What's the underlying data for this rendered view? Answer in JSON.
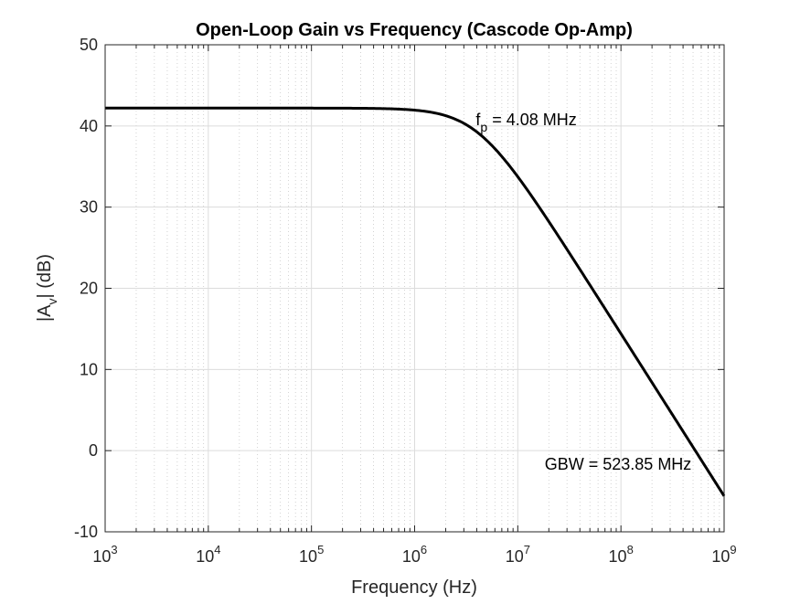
{
  "chart_data": {
    "type": "line",
    "title": "Open-Loop Gain vs Frequency (Cascode Op-Amp)",
    "xlabel": "Frequency (Hz)",
    "ylabel": {
      "prefix": "|A",
      "subscript": "v",
      "suffix": "| (dB)"
    },
    "xscale": "log",
    "xlim": [
      1000,
      1000000000
    ],
    "ylim": [
      -10,
      50
    ],
    "grid": true,
    "minor_grid": true,
    "x_ticks": [
      {
        "value": 1000,
        "base": "10",
        "exp": "3"
      },
      {
        "value": 10000,
        "base": "10",
        "exp": "4"
      },
      {
        "value": 100000,
        "base": "10",
        "exp": "5"
      },
      {
        "value": 1000000,
        "base": "10",
        "exp": "6"
      },
      {
        "value": 10000000,
        "base": "10",
        "exp": "7"
      },
      {
        "value": 100000000,
        "base": "10",
        "exp": "8"
      },
      {
        "value": 1000000000,
        "base": "10",
        "exp": "9"
      }
    ],
    "y_ticks": [
      -10,
      0,
      10,
      20,
      30,
      40,
      50
    ],
    "series": [
      {
        "color": "#000000",
        "model": "single-pole",
        "dc_gain_db": 42.2,
        "pole_hz": 4080000,
        "x": [
          1000,
          10000,
          100000,
          1000000,
          2000000,
          4080000,
          10000000,
          30000000,
          100000000,
          300000000,
          523850000,
          1000000000
        ],
        "y": [
          42.2,
          42.2,
          42.2,
          41.96,
          41.26,
          39.19,
          34.11,
          24.86,
          14.41,
          4.88,
          0.0,
          -5.59
        ]
      }
    ],
    "annotations": [
      {
        "id": "pole",
        "x": 4080000,
        "y": 39.2,
        "pre": "f",
        "sub": "p",
        "post": " = 4.08 MHz"
      },
      {
        "id": "gbw",
        "x": 523850000,
        "y": 0,
        "text": "GBW = 523.85 MHz"
      }
    ]
  }
}
